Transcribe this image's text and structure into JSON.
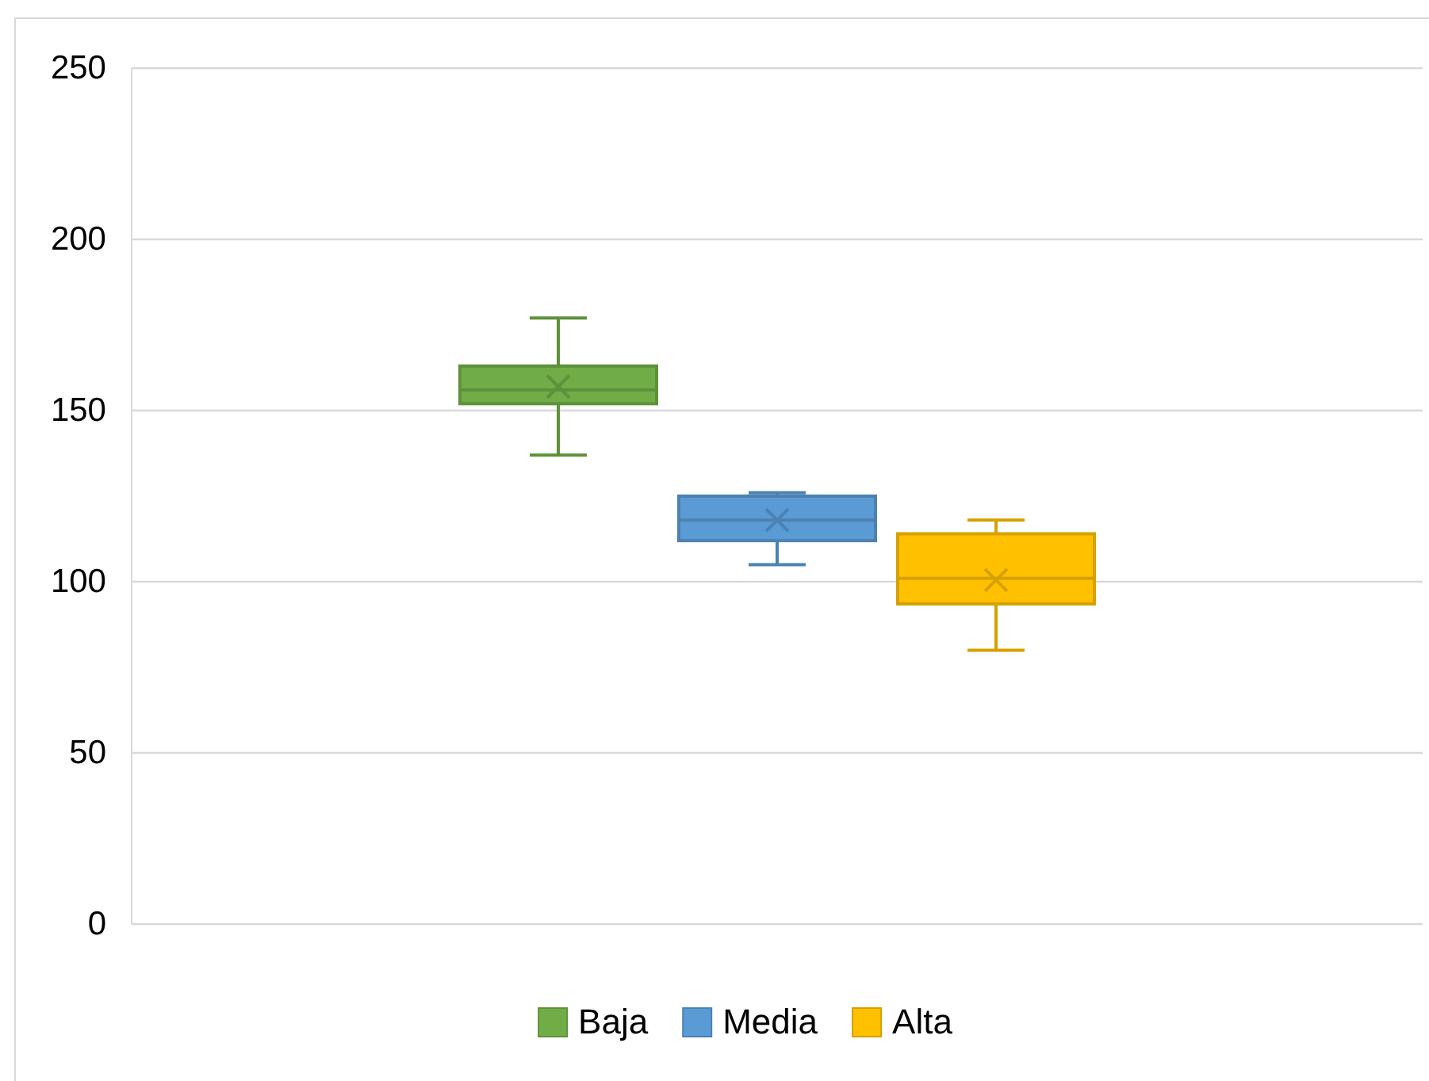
{
  "chart_data": {
    "type": "box",
    "categories": [
      null
    ],
    "series": [
      {
        "name": "Baja",
        "color": "#70ad47",
        "boxes": [
          {
            "low": 137,
            "q1": 152,
            "median": 156,
            "q3": 163,
            "high": 177,
            "mean": 157
          }
        ]
      },
      {
        "name": "Media",
        "color": "#5b9bd5",
        "boxes": [
          {
            "low": 105,
            "q1": 112,
            "median": 118,
            "q3": 125,
            "high": 126,
            "mean": 118
          }
        ]
      },
      {
        "name": "Alta",
        "color": "#ffc000",
        "boxes": [
          {
            "low": 80,
            "q1": 93.5,
            "median": 101,
            "q3": 114,
            "high": 118,
            "mean": 100.5
          }
        ]
      }
    ],
    "ylim": [
      0,
      250
    ],
    "yticks": [
      0,
      50,
      100,
      150,
      200,
      250
    ],
    "grid": "y",
    "legend": "bottom"
  }
}
